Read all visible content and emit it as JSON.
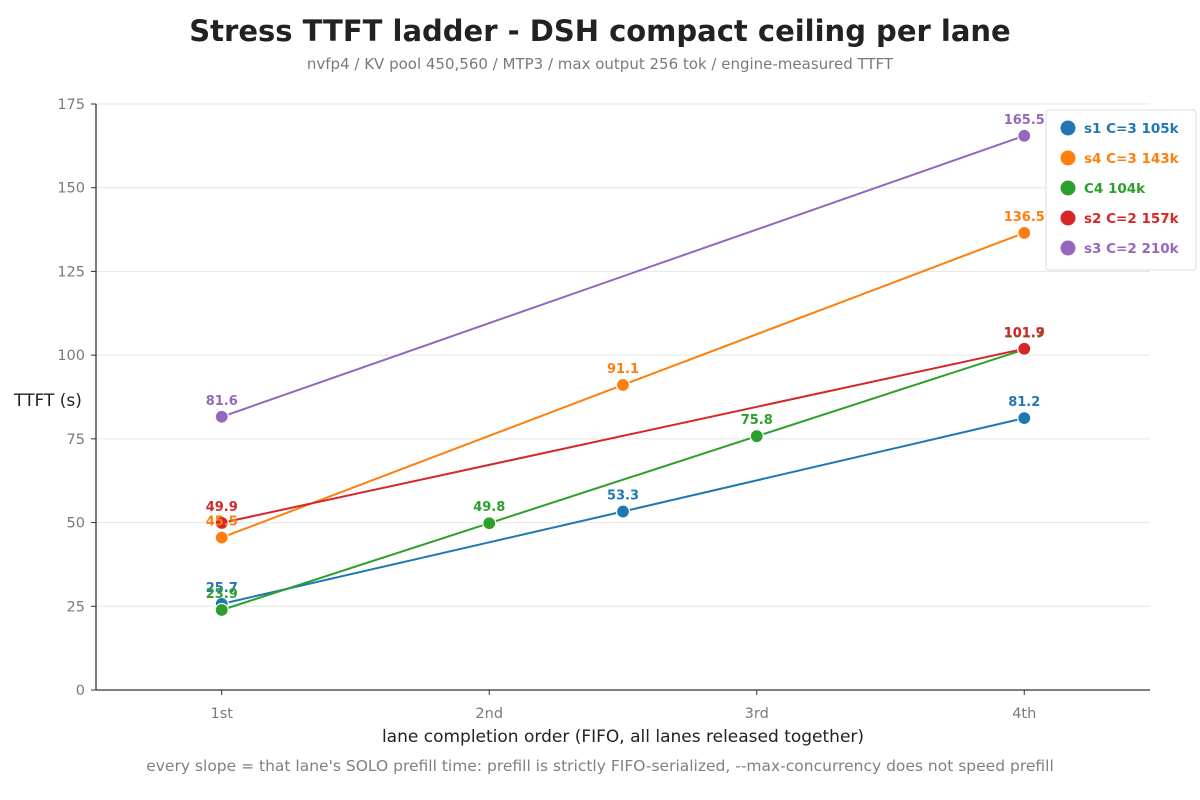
{
  "chart_data": {
    "type": "line",
    "title": "Stress TTFT ladder - DSH compact ceiling per lane",
    "subtitle": "nvfp4 / KV pool 450,560 / MTP3 / max output 256 tok / engine-measured TTFT",
    "xlabel": "lane completion order (FIFO, all lanes released together)",
    "ylabel": "TTFT (s)",
    "footnote": "every slope = that lane's SOLO prefill time: prefill is strictly FIFO-serialized, --max-concurrency does not speed prefill",
    "categories": [
      "1st",
      "2nd",
      "3rd",
      "4th"
    ],
    "xlim": [
      0.53,
      4.47
    ],
    "ylim": [
      0,
      175
    ],
    "yticks": [
      0,
      25,
      50,
      75,
      100,
      125,
      150,
      175
    ],
    "grid": true,
    "legend_position": "top-right",
    "series": [
      {
        "name": "s1  C=3  105k",
        "color": "#1f77b4",
        "points": [
          {
            "x": 1,
            "y": 25.7,
            "label": "25.7"
          },
          {
            "x": 2.5,
            "y": 53.3,
            "label": "53.3"
          },
          {
            "x": 4,
            "y": 81.2,
            "label": "81.2"
          }
        ]
      },
      {
        "name": "s4  C=3  143k",
        "color": "#ff7f0e",
        "points": [
          {
            "x": 1,
            "y": 45.5,
            "label": "45.5"
          },
          {
            "x": 2.5,
            "y": 91.1,
            "label": "91.1"
          },
          {
            "x": 4,
            "y": 136.5,
            "label": "136.5"
          }
        ]
      },
      {
        "name": "C4  104k",
        "color": "#2ca02c",
        "points": [
          {
            "x": 1,
            "y": 23.9,
            "label": "23.9"
          },
          {
            "x": 2,
            "y": 49.8,
            "label": "49.8"
          },
          {
            "x": 3,
            "y": 75.8,
            "label": "75.8"
          },
          {
            "x": 4,
            "y": 101.7,
            "label": "101.7"
          }
        ]
      },
      {
        "name": "s2  C=2  157k",
        "color": "#d62728",
        "points": [
          {
            "x": 1,
            "y": 49.9,
            "label": "49.9"
          },
          {
            "x": 4,
            "y": 101.9,
            "label": "101.9"
          }
        ]
      },
      {
        "name": "s3  C=2  210k",
        "color": "#9467bd",
        "points": [
          {
            "x": 1,
            "y": 81.6,
            "label": "81.6"
          },
          {
            "x": 4,
            "y": 165.5,
            "label": "165.5"
          }
        ]
      }
    ]
  }
}
